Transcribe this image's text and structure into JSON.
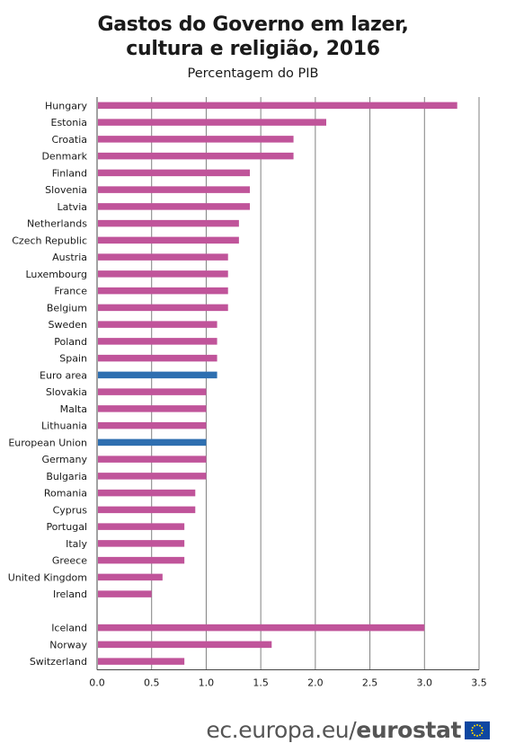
{
  "header": {
    "title_line1": "Gastos do Governo em lazer,",
    "title_line2": "cultura e religião, 2016",
    "subtitle": "Percentagem do PIB"
  },
  "footer": {
    "domain": "ec.europa.eu/",
    "brand": "eurostat"
  },
  "colors": {
    "default_bar": "#c0549a",
    "aggregate_bar": "#2e6fb0",
    "grid": "#808080"
  },
  "chart_data": {
    "type": "bar",
    "orientation": "horizontal",
    "title": "Gastos do Governo em lazer, cultura e religião, 2016",
    "subtitle": "Percentagem do PIB",
    "xlabel": "",
    "ylabel": "",
    "xlim": [
      0,
      3.5
    ],
    "x_ticks": [
      "0.0",
      "0.5",
      "1.0",
      "1.5",
      "2.0",
      "2.5",
      "3.0",
      "3.5"
    ],
    "grid": "vertical",
    "categories": [
      "Hungary",
      "Estonia",
      "Croatia",
      "Denmark",
      "Finland",
      "Slovenia",
      "Latvia",
      "Netherlands",
      "Czech Republic",
      "Austria",
      "Luxembourg",
      "France",
      "Belgium",
      "Sweden",
      "Poland",
      "Spain",
      "Euro area",
      "Slovakia",
      "Malta",
      "Lithuania",
      "European Union",
      "Germany",
      "Bulgaria",
      "Romania",
      "Cyprus",
      "Portugal",
      "Italy",
      "Greece",
      "United Kingdom",
      "Ireland",
      "",
      "Iceland",
      "Norway",
      "Switzerland"
    ],
    "values": [
      3.3,
      2.1,
      1.8,
      1.8,
      1.4,
      1.4,
      1.4,
      1.3,
      1.3,
      1.2,
      1.2,
      1.2,
      1.2,
      1.1,
      1.1,
      1.1,
      1.1,
      1.0,
      1.0,
      1.0,
      1.0,
      1.0,
      1.0,
      0.9,
      0.9,
      0.8,
      0.8,
      0.8,
      0.6,
      0.5,
      null,
      3.0,
      1.6,
      0.8
    ],
    "highlighted": [
      "Euro area",
      "European Union"
    ]
  }
}
